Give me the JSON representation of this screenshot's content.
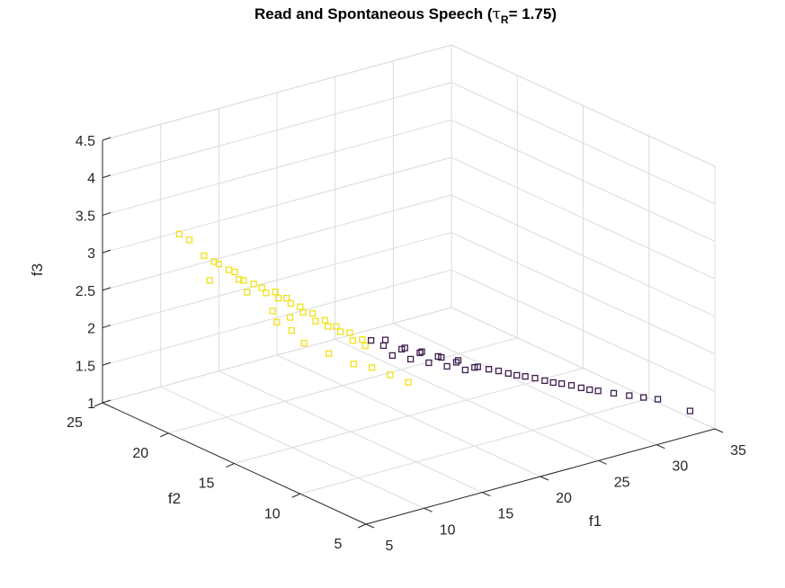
{
  "chart_data": {
    "type": "scatter",
    "title": {
      "main": "Read and Spontaneous Speech (",
      "tau": "τ",
      "subscript": "R",
      "suffix": "= 1.75)"
    },
    "xlabel": "f1",
    "ylabel": "f2",
    "zlabel": "f3",
    "xlim": [
      5,
      35
    ],
    "ylim": [
      5,
      25
    ],
    "zlim": [
      1,
      4.5
    ],
    "xticks": [
      "5",
      "10",
      "15",
      "20",
      "25",
      "30",
      "35"
    ],
    "yticks": [
      "5",
      "10",
      "15",
      "20",
      "25"
    ],
    "zticks": [
      "1",
      "1.5",
      "2",
      "2.5",
      "3",
      "3.5",
      "4",
      "4.5"
    ],
    "grid": true,
    "marker": "square",
    "series": [
      {
        "color": "#f2e21b",
        "points": [
          [
            6.5,
            20.5,
            3.55
          ],
          [
            6.8,
            20.0,
            3.5
          ],
          [
            7.5,
            19.5,
            3.3
          ],
          [
            7.8,
            19.0,
            3.25
          ],
          [
            8.5,
            18.5,
            3.15
          ],
          [
            8.2,
            19.0,
            3.2
          ],
          [
            8.8,
            18.0,
            3.05
          ],
          [
            9.0,
            18.5,
            3.1
          ],
          [
            9.5,
            17.5,
            3.0
          ],
          [
            9.2,
            18.0,
            3.02
          ],
          [
            10.0,
            17.0,
            2.9
          ],
          [
            10.2,
            17.5,
            2.92
          ],
          [
            10.5,
            16.5,
            2.85
          ],
          [
            10.8,
            17.0,
            2.88
          ],
          [
            11.0,
            16.0,
            2.8
          ],
          [
            11.2,
            16.5,
            2.82
          ],
          [
            11.5,
            15.5,
            2.7
          ],
          [
            11.8,
            16.0,
            2.72
          ],
          [
            12.0,
            15.0,
            2.6
          ],
          [
            12.3,
            15.5,
            2.65
          ],
          [
            12.5,
            14.5,
            2.55
          ],
          [
            12.8,
            15.0,
            2.58
          ],
          [
            13.0,
            14.0,
            2.5
          ],
          [
            13.2,
            14.5,
            2.52
          ],
          [
            13.5,
            13.5,
            2.4
          ],
          [
            13.8,
            14.0,
            2.45
          ],
          [
            14.0,
            13.0,
            2.35
          ],
          [
            14.3,
            13.5,
            2.38
          ],
          [
            9.8,
            16.0,
            2.6
          ],
          [
            10.5,
            15.5,
            2.5
          ],
          [
            8.0,
            19.5,
            2.95
          ],
          [
            9.5,
            18.0,
            2.85
          ],
          [
            11.0,
            15.0,
            2.35
          ],
          [
            12.0,
            14.0,
            2.25
          ],
          [
            13.0,
            13.0,
            2.15
          ],
          [
            14.0,
            12.5,
            2.1
          ],
          [
            15.0,
            12.0,
            2.0
          ],
          [
            16.0,
            11.5,
            1.9
          ],
          [
            10.0,
            16.5,
            2.7
          ],
          [
            11.5,
            16.5,
            2.55
          ]
        ]
      },
      {
        "color": "#3e1f4f",
        "points": [
          [
            14.5,
            13.0,
            2.4
          ],
          [
            15.0,
            12.5,
            2.35
          ],
          [
            15.5,
            12.8,
            2.38
          ],
          [
            16.0,
            12.0,
            2.3
          ],
          [
            16.5,
            12.2,
            2.28
          ],
          [
            17.0,
            11.5,
            2.25
          ],
          [
            17.5,
            11.8,
            2.22
          ],
          [
            18.0,
            11.0,
            2.2
          ],
          [
            18.5,
            11.2,
            2.15
          ],
          [
            19.0,
            10.5,
            2.12
          ],
          [
            19.5,
            10.8,
            2.1
          ],
          [
            20.0,
            10.0,
            2.05
          ],
          [
            20.5,
            10.2,
            2.02
          ],
          [
            21.0,
            9.8,
            2.0
          ],
          [
            21.5,
            9.5,
            1.98
          ],
          [
            22.0,
            9.2,
            1.95
          ],
          [
            22.5,
            9.0,
            1.92
          ],
          [
            23.0,
            8.8,
            1.9
          ],
          [
            23.5,
            8.5,
            1.88
          ],
          [
            24.0,
            8.2,
            1.85
          ],
          [
            24.5,
            8.0,
            1.82
          ],
          [
            25.0,
            7.8,
            1.8
          ],
          [
            25.5,
            7.5,
            1.78
          ],
          [
            26.0,
            7.2,
            1.75
          ],
          [
            26.5,
            7.0,
            1.72
          ],
          [
            27.0,
            6.8,
            1.7
          ],
          [
            28.0,
            6.5,
            1.65
          ],
          [
            29.0,
            6.2,
            1.6
          ],
          [
            30.0,
            6.0,
            1.55
          ],
          [
            31.0,
            5.8,
            1.5
          ],
          [
            15.2,
            12.0,
            2.25
          ],
          [
            16.2,
            11.5,
            2.2
          ],
          [
            17.2,
            11.0,
            2.15
          ],
          [
            18.2,
            10.5,
            2.1
          ],
          [
            19.2,
            10.0,
            2.05
          ],
          [
            34.0,
            6.0,
            1.2
          ]
        ]
      }
    ]
  }
}
